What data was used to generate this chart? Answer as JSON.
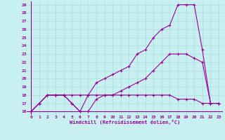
{
  "xlabel": "Windchill (Refroidissement éolien,°C)",
  "bg_color": "#c8f0f0",
  "line_color": "#990099",
  "grid_color": "#aadddd",
  "xlim": [
    -0.5,
    23.5
  ],
  "ylim": [
    15.6,
    29.4
  ],
  "xticks": [
    0,
    1,
    2,
    3,
    4,
    5,
    6,
    7,
    8,
    9,
    10,
    11,
    12,
    13,
    14,
    15,
    16,
    17,
    18,
    19,
    20,
    21,
    22,
    23
  ],
  "yticks": [
    16,
    17,
    18,
    19,
    20,
    21,
    22,
    23,
    24,
    25,
    26,
    27,
    28,
    29
  ],
  "line1_x": [
    0,
    1,
    2,
    3,
    4,
    5,
    6,
    7,
    8,
    9,
    10,
    11,
    12,
    13,
    14,
    15,
    16,
    17,
    18,
    19,
    20,
    21,
    22,
    23
  ],
  "line1_y": [
    16,
    17,
    18,
    18,
    18,
    17,
    16,
    18,
    19.5,
    20,
    20.5,
    21,
    21.5,
    23,
    23.5,
    25,
    26,
    26.5,
    29,
    29,
    29,
    23.5,
    17,
    17
  ],
  "line2_x": [
    0,
    1,
    2,
    3,
    4,
    5,
    6,
    7,
    8,
    9,
    10,
    11,
    12,
    13,
    14,
    15,
    16,
    17,
    18,
    19,
    20,
    21,
    22,
    23
  ],
  "line2_y": [
    16,
    17,
    18,
    18,
    18,
    17,
    16,
    16,
    17.5,
    18,
    18,
    18.5,
    19,
    19.5,
    20,
    21,
    22,
    23,
    23,
    23,
    22.5,
    22,
    17,
    17
  ],
  "line3_x": [
    0,
    1,
    2,
    3,
    4,
    5,
    6,
    7,
    8,
    9,
    10,
    11,
    12,
    13,
    14,
    15,
    16,
    17,
    18,
    19,
    20,
    21,
    22,
    23
  ],
  "line3_y": [
    16,
    17,
    18,
    18,
    18,
    18,
    18,
    18,
    18,
    18,
    18,
    18,
    18,
    18,
    18,
    18,
    18,
    18,
    17.5,
    17.5,
    17.5,
    17,
    17,
    17
  ]
}
